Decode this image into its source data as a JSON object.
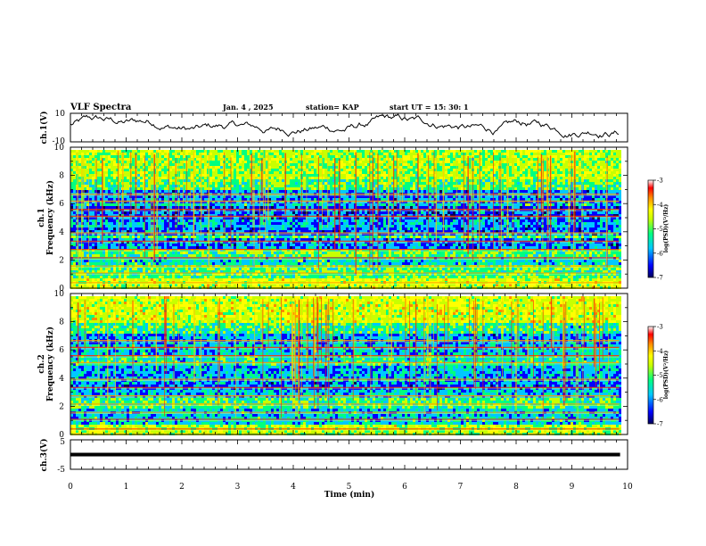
{
  "header": {
    "title": "VLF Spectra",
    "date": "Jan. 4 , 2025",
    "station": "station= KAP",
    "start": "start UT = 15: 30: 1"
  },
  "colors": {
    "spectral_scale": [
      "#00005a",
      "#0000ff",
      "#00c8ff",
      "#00ff80",
      "#c8ff00",
      "#ffff00",
      "#ff8c00",
      "#ff0000",
      "#ffffff"
    ]
  },
  "chart_data": [
    {
      "type": "line",
      "name": "ch1-waveform",
      "ylabel": "ch.1(V)",
      "ylim": [
        -10,
        10
      ],
      "ytick_labels": [
        "10",
        "-10"
      ],
      "xlim": [
        0,
        10
      ]
    },
    {
      "type": "heatmap",
      "name": "ch1-spectrogram",
      "ylabel_channel": "ch.1",
      "ylabel": "Frequency (kHz)",
      "ylim": [
        0,
        10
      ],
      "yticks": [
        "0",
        "2",
        "4",
        "6",
        "8",
        "10"
      ],
      "xlim": [
        0,
        10
      ],
      "data_end_min": 9.85,
      "colorbar": {
        "label": "log(PSD)(V²/Hz)",
        "range": [
          -7,
          -3
        ],
        "ticks": [
          "-3",
          "-4",
          "-5",
          "-6",
          "-7"
        ]
      }
    },
    {
      "type": "heatmap",
      "name": "ch2-spectrogram",
      "ylabel_channel": "ch.2",
      "ylabel": "Frequency (kHz)",
      "ylim": [
        0,
        10
      ],
      "yticks": [
        "0",
        "2",
        "4",
        "6",
        "8",
        "10"
      ],
      "xlim": [
        0,
        10
      ],
      "data_end_min": 9.85,
      "colorbar": {
        "label": "log(PSD)(V²/Hz)",
        "range": [
          -7,
          -3
        ],
        "ticks": [
          "-3",
          "-4",
          "-5",
          "-6",
          "-7"
        ]
      }
    },
    {
      "type": "line",
      "name": "ch3-waveform",
      "ylabel": "ch.3(V)",
      "ylim": [
        -5,
        5
      ],
      "ytick_labels": [
        "5",
        "-5"
      ],
      "xlim": [
        0,
        10
      ],
      "level_range": [
        -0.6,
        0.6
      ]
    }
  ],
  "xaxis": {
    "label": "Time (min)",
    "ticks": [
      "0",
      "1",
      "2",
      "3",
      "4",
      "5",
      "6",
      "7",
      "8",
      "9",
      "10"
    ]
  }
}
